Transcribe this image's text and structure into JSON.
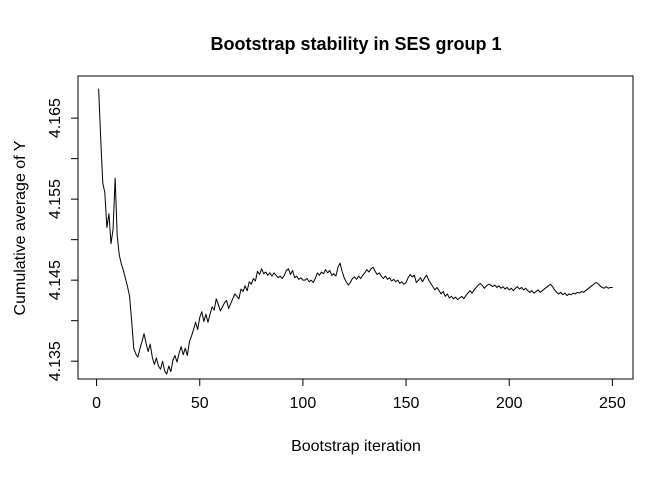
{
  "page": {
    "background": "#ffffff"
  },
  "chart_data": {
    "type": "line",
    "title": "Bootstrap stability in SES group 1",
    "xlabel": "Bootstrap iteration",
    "ylabel": "Cumulative average of Y",
    "grid": false,
    "legend": null,
    "line_color": "#000000",
    "text_color": "#000000",
    "background": "#ffffff",
    "x_start": 1,
    "x_step": 1,
    "n_points": 250,
    "xlim": [
      -9,
      260
    ],
    "ylim": [
      4.1328,
      4.1702
    ],
    "x_ticks": [
      {
        "v": 0,
        "label": "0"
      },
      {
        "v": 50,
        "label": "50"
      },
      {
        "v": 100,
        "label": "100"
      },
      {
        "v": 150,
        "label": "150"
      },
      {
        "v": 200,
        "label": "200"
      },
      {
        "v": 250,
        "label": "250"
      }
    ],
    "y_ticks": [
      {
        "v": 4.135,
        "label": "4.135"
      },
      {
        "v": 4.14,
        "label": ""
      },
      {
        "v": 4.145,
        "label": "4.145"
      },
      {
        "v": 4.15,
        "label": ""
      },
      {
        "v": 4.155,
        "label": "4.155"
      },
      {
        "v": 4.16,
        "label": ""
      },
      {
        "v": 4.165,
        "label": "4.165"
      }
    ],
    "values": [
      4.1686,
      4.1625,
      4.157,
      4.1558,
      4.1515,
      4.1532,
      4.1495,
      4.1513,
      4.1576,
      4.1505,
      4.1481,
      4.147,
      4.1462,
      4.1452,
      4.1442,
      4.143,
      4.14,
      4.1366,
      4.1359,
      4.1355,
      4.1365,
      4.1374,
      4.1384,
      4.1372,
      4.1362,
      4.1371,
      4.1355,
      4.1346,
      4.1354,
      4.1344,
      4.134,
      4.135,
      4.1338,
      4.1334,
      4.1344,
      4.1337,
      4.1351,
      4.1357,
      4.1349,
      4.136,
      4.1368,
      4.1358,
      4.1366,
      4.1357,
      4.1374,
      4.1381,
      4.1389,
      4.1398,
      4.1389,
      4.1404,
      4.1411,
      4.1399,
      4.1408,
      4.1398,
      4.1408,
      4.1417,
      4.1413,
      4.1427,
      4.142,
      4.1412,
      4.1417,
      4.1422,
      4.1425,
      4.1415,
      4.1421,
      4.1427,
      4.1433,
      4.143,
      4.1427,
      4.1439,
      4.1436,
      4.1443,
      4.1437,
      4.1448,
      4.1445,
      4.1452,
      4.1449,
      4.1461,
      4.1457,
      4.1464,
      4.1458,
      4.146,
      4.1456,
      4.1459,
      4.1455,
      4.1459,
      4.1456,
      4.1453,
      4.1455,
      4.1452,
      4.1456,
      4.1462,
      4.1464,
      4.1457,
      4.1462,
      4.1453,
      4.1455,
      4.1451,
      4.1453,
      4.145,
      4.145,
      4.1452,
      4.1448,
      4.145,
      4.1447,
      4.1452,
      4.1459,
      4.1456,
      4.146,
      4.1458,
      4.1463,
      4.1459,
      4.1462,
      4.1456,
      4.1458,
      4.1455,
      4.1466,
      4.1471,
      4.1461,
      4.1453,
      4.1448,
      4.1444,
      4.1447,
      4.1452,
      4.1454,
      4.1451,
      4.1455,
      4.1452,
      4.1456,
      4.1459,
      4.1463,
      4.146,
      4.1464,
      4.1466,
      4.1461,
      4.1457,
      4.1459,
      4.1455,
      4.1452,
      4.1455,
      4.1451,
      4.1453,
      4.1449,
      4.1451,
      4.1448,
      4.145,
      4.1446,
      4.1448,
      4.1445,
      4.1447,
      4.1453,
      4.1457,
      4.1454,
      4.1456,
      4.1447,
      4.145,
      4.1453,
      4.1448,
      4.1453,
      4.1456,
      4.145,
      4.1446,
      4.1442,
      4.1438,
      4.1441,
      4.1437,
      4.1433,
      4.1436,
      4.143,
      4.1433,
      4.1428,
      4.143,
      4.1427,
      4.1429,
      4.1426,
      4.1428,
      4.143,
      4.1427,
      4.1431,
      4.1434,
      4.1437,
      4.1434,
      4.1438,
      4.1441,
      4.1444,
      4.1446,
      4.1443,
      4.144,
      4.1443,
      4.1445,
      4.1444,
      4.1442,
      4.1444,
      4.1441,
      4.1443,
      4.144,
      4.1442,
      4.1439,
      4.1441,
      4.1438,
      4.144,
      4.1437,
      4.144,
      4.1442,
      4.1439,
      4.1441,
      4.1438,
      4.144,
      4.1437,
      4.1435,
      4.1437,
      4.1434,
      4.1436,
      4.1438,
      4.1435,
      4.1437,
      4.1439,
      4.1441,
      4.1443,
      4.1445,
      4.1442,
      4.1438,
      4.1435,
      4.1433,
      4.1435,
      4.1432,
      4.1434,
      4.1431,
      4.1433,
      4.1432,
      4.1434,
      4.1433,
      4.1435,
      4.1434,
      4.1436,
      4.1435,
      4.1437,
      4.1439,
      4.1441,
      4.1443,
      4.1445,
      4.1447,
      4.1446,
      4.1443,
      4.1441,
      4.144,
      4.1442,
      4.144,
      4.1441,
      4.1441
    ]
  }
}
